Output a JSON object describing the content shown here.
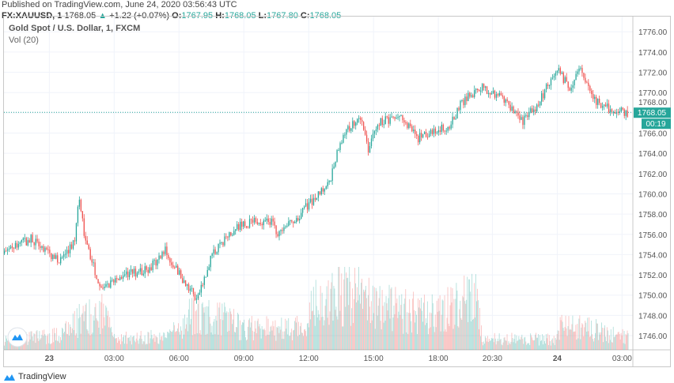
{
  "published": "Published on TradingView.com, June 24, 2020 03:56:43 UTC",
  "header": {
    "symbol": "FX:XAUUSD, 1",
    "last": "1768.05",
    "change": "+1.22 (+0.07%)",
    "o_label": "O:",
    "o": "1767.95",
    "h_label": "H:",
    "h": "1768.05",
    "l_label": "L:",
    "l": "1767.80",
    "c_label": "C:",
    "c": "1768.05"
  },
  "legend": {
    "title": "Gold Spot / U.S. Dollar, 1, FXCM",
    "volume": "Vol (20)"
  },
  "price_tag": {
    "price": "1768.05",
    "countdown": "00:19"
  },
  "footer": {
    "brand": "TradingView"
  },
  "colors": {
    "up": "#26a69a",
    "down": "#ef5350",
    "tag": "#26a69a"
  },
  "chart_data": {
    "type": "candlestick",
    "title": "Gold Spot / U.S. Dollar, 1, FXCM",
    "ylim": [
      1744.6,
      1777.5
    ],
    "xlim_hours_from_jun23": [
      -2.1,
      27.0
    ],
    "y_ticks": [
      "1746.00",
      "1748.00",
      "1750.00",
      "1752.00",
      "1754.00",
      "1756.00",
      "1758.00",
      "1760.00",
      "1762.00",
      "1764.00",
      "1766.00",
      "1768.00",
      "1770.00",
      "1772.00",
      "1774.00",
      "1776.00"
    ],
    "x_ticks": [
      {
        "label": "23",
        "hour": 0,
        "bold": true
      },
      {
        "label": "03:00",
        "hour": 3
      },
      {
        "label": "06:00",
        "hour": 6
      },
      {
        "label": "09:00",
        "hour": 9
      },
      {
        "label": "12:00",
        "hour": 12
      },
      {
        "label": "15:00",
        "hour": 15
      },
      {
        "label": "18:00",
        "hour": 18
      },
      {
        "label": "20:30",
        "hour": 20.5
      },
      {
        "label": "24",
        "hour": 23.5,
        "bold": true
      },
      {
        "label": "03:00",
        "hour": 26.5
      }
    ],
    "price_path": [
      [
        -2.1,
        1754.1
      ],
      [
        -0.8,
        1755.6
      ],
      [
        0.5,
        1753.3
      ],
      [
        1.2,
        1755.2
      ],
      [
        1.4,
        1759.8
      ],
      [
        1.75,
        1754.9
      ],
      [
        2.5,
        1750.3
      ],
      [
        3.2,
        1751.8
      ],
      [
        4.7,
        1752.6
      ],
      [
        5.4,
        1754.5
      ],
      [
        6.15,
        1751.8
      ],
      [
        6.9,
        1749.5
      ],
      [
        7.6,
        1754.1
      ],
      [
        8.7,
        1756.8
      ],
      [
        10.2,
        1757.5
      ],
      [
        10.7,
        1756.0
      ],
      [
        11.6,
        1757.9
      ],
      [
        12.4,
        1759.8
      ],
      [
        13.1,
        1761.7
      ],
      [
        13.5,
        1765.2
      ],
      [
        14.4,
        1767.8
      ],
      [
        14.8,
        1764.4
      ],
      [
        15.3,
        1767.1
      ],
      [
        16.4,
        1767.5
      ],
      [
        17.1,
        1765.5
      ],
      [
        18.6,
        1766.7
      ],
      [
        19.1,
        1769.0
      ],
      [
        20.0,
        1770.5
      ],
      [
        21.1,
        1769.4
      ],
      [
        21.9,
        1767.1
      ],
      [
        22.6,
        1768.6
      ],
      [
        23.5,
        1772.4
      ],
      [
        24.1,
        1770.5
      ],
      [
        24.6,
        1772.4
      ],
      [
        25.2,
        1769.4
      ],
      [
        26.1,
        1768.2
      ],
      [
        26.8,
        1768.05
      ]
    ],
    "volume_profile": [
      [
        -2.1,
        0.15
      ],
      [
        0.5,
        0.2
      ],
      [
        1.5,
        0.45
      ],
      [
        2.5,
        0.5
      ],
      [
        3.0,
        0.15
      ],
      [
        5.5,
        0.2
      ],
      [
        6.7,
        0.55
      ],
      [
        8.0,
        0.45
      ],
      [
        9.0,
        0.3
      ],
      [
        11.9,
        0.3
      ],
      [
        12.1,
        0.6
      ],
      [
        14.0,
        0.85
      ],
      [
        15.0,
        0.6
      ],
      [
        18.0,
        0.5
      ],
      [
        19.7,
        0.75
      ],
      [
        20.0,
        0.15
      ],
      [
        23.4,
        0.15
      ],
      [
        23.6,
        0.35
      ],
      [
        25.0,
        0.3
      ],
      [
        27.0,
        0.15
      ]
    ]
  }
}
